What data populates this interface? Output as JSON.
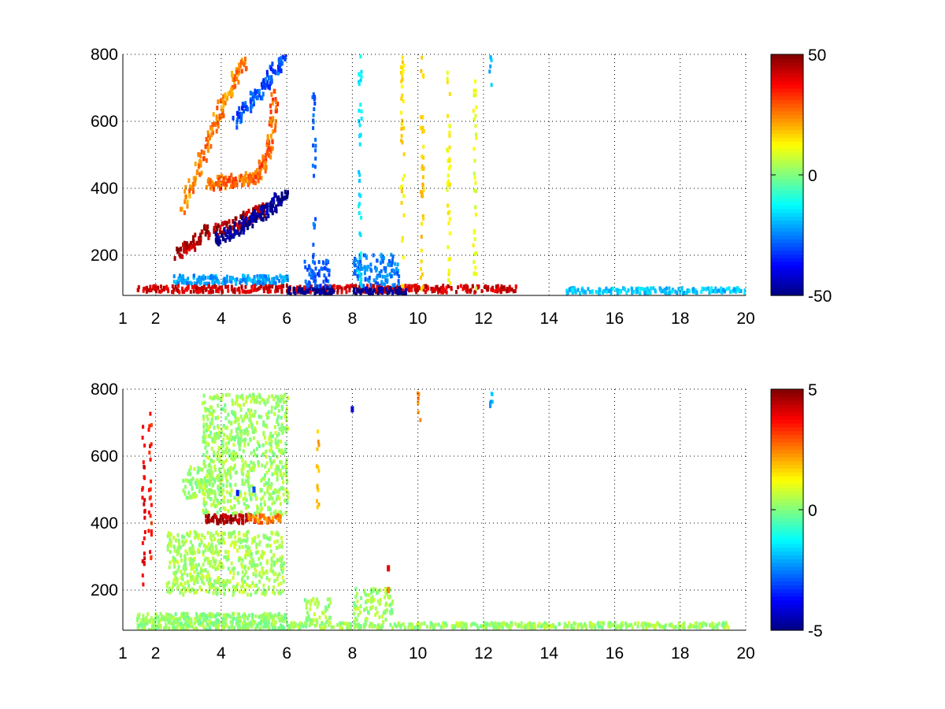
{
  "chart_data": [
    {
      "type": "heatmap",
      "title": "",
      "xlabel": "",
      "ylabel": "",
      "xlim": [
        1,
        20
      ],
      "ylim": [
        80,
        800
      ],
      "xticks": [
        1,
        2,
        4,
        6,
        8,
        10,
        12,
        14,
        16,
        18,
        20
      ],
      "yticks": [
        200,
        400,
        600,
        800
      ],
      "grid": true,
      "colormap": "jet",
      "clim": [
        -50,
        50
      ],
      "colorbar_ticks": [
        -50,
        0,
        50
      ],
      "colorbar_placement": "right",
      "features": [
        {
          "kind": "curve",
          "value": 45,
          "points": [
            [
              2.6,
              210
            ],
            [
              3.0,
              235
            ],
            [
              3.5,
              275
            ],
            [
              4.0,
              285
            ],
            [
              4.5,
              300
            ],
            [
              5.0,
              330
            ],
            [
              5.3,
              350
            ]
          ]
        },
        {
          "kind": "curve",
          "value": 25,
          "points": [
            [
              2.8,
              350
            ],
            [
              3.2,
              450
            ],
            [
              3.6,
              560
            ],
            [
              4.0,
              650
            ],
            [
              4.4,
              730
            ],
            [
              4.7,
              790
            ]
          ]
        },
        {
          "kind": "curve",
          "value": 28,
          "points": [
            [
              3.6,
              420
            ],
            [
              4.0,
              425
            ],
            [
              4.5,
              430
            ],
            [
              5.0,
              440
            ],
            [
              5.3,
              480
            ],
            [
              5.5,
              560
            ],
            [
              5.6,
              700
            ]
          ]
        },
        {
          "kind": "curve",
          "value": -48,
          "points": [
            [
              3.8,
              255
            ],
            [
              4.3,
              275
            ],
            [
              4.8,
              305
            ],
            [
              5.2,
              330
            ],
            [
              5.6,
              360
            ],
            [
              5.9,
              390
            ]
          ]
        },
        {
          "kind": "curve",
          "value": -30,
          "points": [
            [
              4.4,
              600
            ],
            [
              4.8,
              660
            ],
            [
              5.2,
              700
            ],
            [
              5.6,
              760
            ],
            [
              5.9,
              790
            ]
          ]
        },
        {
          "kind": "band",
          "x": [
            2.5,
            6.0
          ],
          "y": [
            120,
            145
          ],
          "value": -22
        },
        {
          "kind": "band",
          "x": [
            1.4,
            13.0
          ],
          "y": [
            95,
            115
          ],
          "value": 42
        },
        {
          "kind": "band",
          "x": [
            6.0,
            7.4
          ],
          "y": [
            88,
            108
          ],
          "value": -50
        },
        {
          "kind": "band",
          "x": [
            8.0,
            9.6
          ],
          "y": [
            88,
            108
          ],
          "value": -48
        },
        {
          "kind": "band",
          "x": [
            14.5,
            20.0
          ],
          "y": [
            92,
            108
          ],
          "value": -18
        },
        {
          "kind": "blob",
          "x": [
            6.5,
            7.3
          ],
          "y": [
            110,
            190
          ],
          "value": -30
        },
        {
          "kind": "blob",
          "x": [
            8.0,
            9.4
          ],
          "y": [
            110,
            210
          ],
          "value": -25
        },
        {
          "kind": "column",
          "x": 6.8,
          "y": [
            120,
            700
          ],
          "value": -28
        },
        {
          "kind": "column",
          "x": 8.2,
          "y": [
            100,
            800
          ],
          "value": -15
        },
        {
          "kind": "column",
          "x": 9.5,
          "y": [
            100,
            800
          ],
          "value": 15
        },
        {
          "kind": "column",
          "x": 10.1,
          "y": [
            100,
            800
          ],
          "value": 18
        },
        {
          "kind": "column",
          "x": 10.9,
          "y": [
            100,
            800
          ],
          "value": 12
        },
        {
          "kind": "column",
          "x": 11.7,
          "y": [
            100,
            740
          ],
          "value": 10
        },
        {
          "kind": "column",
          "x": 12.2,
          "y": [
            700,
            800
          ],
          "value": -20
        }
      ]
    },
    {
      "type": "heatmap",
      "title": "",
      "xlabel": "",
      "ylabel": "",
      "xlim": [
        1,
        20
      ],
      "ylim": [
        80,
        800
      ],
      "xticks": [
        1,
        2,
        4,
        6,
        8,
        10,
        12,
        14,
        16,
        18,
        20
      ],
      "yticks": [
        200,
        400,
        600,
        800
      ],
      "grid": true,
      "colormap": "jet",
      "clim": [
        -5,
        5
      ],
      "colorbar_ticks": [
        -5,
        0,
        5
      ],
      "colorbar_placement": "right",
      "features": [
        {
          "kind": "blob",
          "x": [
            2.3,
            5.9
          ],
          "y": [
            190,
            380
          ],
          "value": 0.4
        },
        {
          "kind": "blob",
          "x": [
            3.4,
            6.0
          ],
          "y": [
            430,
            790
          ],
          "value": 0.3
        },
        {
          "kind": "blob",
          "x": [
            2.8,
            4.0
          ],
          "y": [
            480,
            580
          ],
          "value": 0.3
        },
        {
          "kind": "band",
          "x": [
            3.5,
            5.0
          ],
          "y": [
            405,
            430
          ],
          "value": 4.5
        },
        {
          "kind": "band",
          "x": [
            4.8,
            5.8
          ],
          "y": [
            405,
            430
          ],
          "value": 2.5
        },
        {
          "kind": "band",
          "x": [
            1.4,
            6.0
          ],
          "y": [
            85,
            135
          ],
          "value": 0.2
        },
        {
          "kind": "band",
          "x": [
            6.0,
            19.5
          ],
          "y": [
            92,
            108
          ],
          "value": 0.3
        },
        {
          "kind": "blob",
          "x": [
            6.5,
            7.3
          ],
          "y": [
            110,
            180
          ],
          "value": 0.3
        },
        {
          "kind": "blob",
          "x": [
            8.0,
            9.2
          ],
          "y": [
            110,
            210
          ],
          "value": 0.3
        },
        {
          "kind": "column",
          "x": 1.6,
          "y": [
            220,
            700
          ],
          "value": 4.0
        },
        {
          "kind": "column",
          "x": 1.8,
          "y": [
            300,
            740
          ],
          "value": 3.5
        },
        {
          "kind": "column",
          "x": 6.9,
          "y": [
            450,
            700
          ],
          "value": 2.0
        },
        {
          "kind": "column",
          "x": 10.0,
          "y": [
            710,
            800
          ],
          "value": 2.5
        },
        {
          "kind": "column",
          "x": 12.2,
          "y": [
            750,
            800
          ],
          "value": -2.0
        },
        {
          "kind": "point",
          "x": 8.0,
          "y": 740,
          "value": -4.0
        },
        {
          "kind": "point",
          "x": 9.1,
          "y": 265,
          "value": 4.0
        },
        {
          "kind": "point",
          "x": 9.1,
          "y": 200,
          "value": 2.5
        },
        {
          "kind": "point",
          "x": 4.5,
          "y": 490,
          "value": -3.5
        },
        {
          "kind": "point",
          "x": 5.0,
          "y": 500,
          "value": -3.0
        }
      ]
    }
  ]
}
